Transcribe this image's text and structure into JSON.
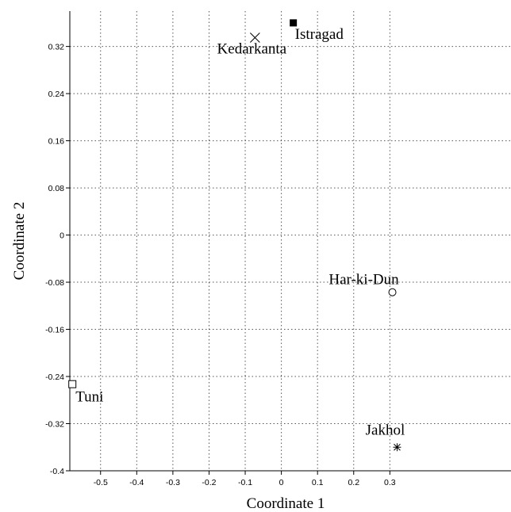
{
  "chart_data": {
    "type": "scatter",
    "title": "",
    "xlabel": "Coordinate 1",
    "ylabel": "Coordinate 2",
    "xlim": [
      -0.585,
      0.635
    ],
    "ylim": [
      -0.4,
      0.38
    ],
    "x_ticks": [
      -0.5,
      -0.4,
      -0.3,
      -0.2,
      -0.1,
      0,
      0.1,
      0.2,
      0.3
    ],
    "y_ticks": [
      0.32,
      0.24,
      0.16,
      0.08,
      0,
      -0.08,
      -0.16,
      -0.24,
      -0.32,
      -0.4
    ],
    "x_tick_labels": [
      "-0.5",
      "-0.4",
      "-0.3",
      "-0.2",
      "-0.1",
      "0",
      "0.1",
      "0.2",
      "0.3"
    ],
    "y_tick_labels": [
      "0.32",
      "0.24",
      "0.16",
      "0.08",
      "0",
      "-0.08",
      "-0.16",
      "-0.24",
      "-0.32",
      "-0.4"
    ],
    "grid": true,
    "points": [
      {
        "label": "Istragad",
        "x": 0.033,
        "y": 0.36,
        "marker": "filled-square"
      },
      {
        "label": "Kedarkanta",
        "x": -0.073,
        "y": 0.335,
        "marker": "cross"
      },
      {
        "label": "Har-ki-Dun",
        "x": 0.307,
        "y": -0.097,
        "marker": "open-circle"
      },
      {
        "label": "Tuni",
        "x": -0.578,
        "y": -0.253,
        "marker": "open-square"
      },
      {
        "label": "Jakhol",
        "x": 0.32,
        "y": -0.36,
        "marker": "asterisk"
      }
    ]
  }
}
